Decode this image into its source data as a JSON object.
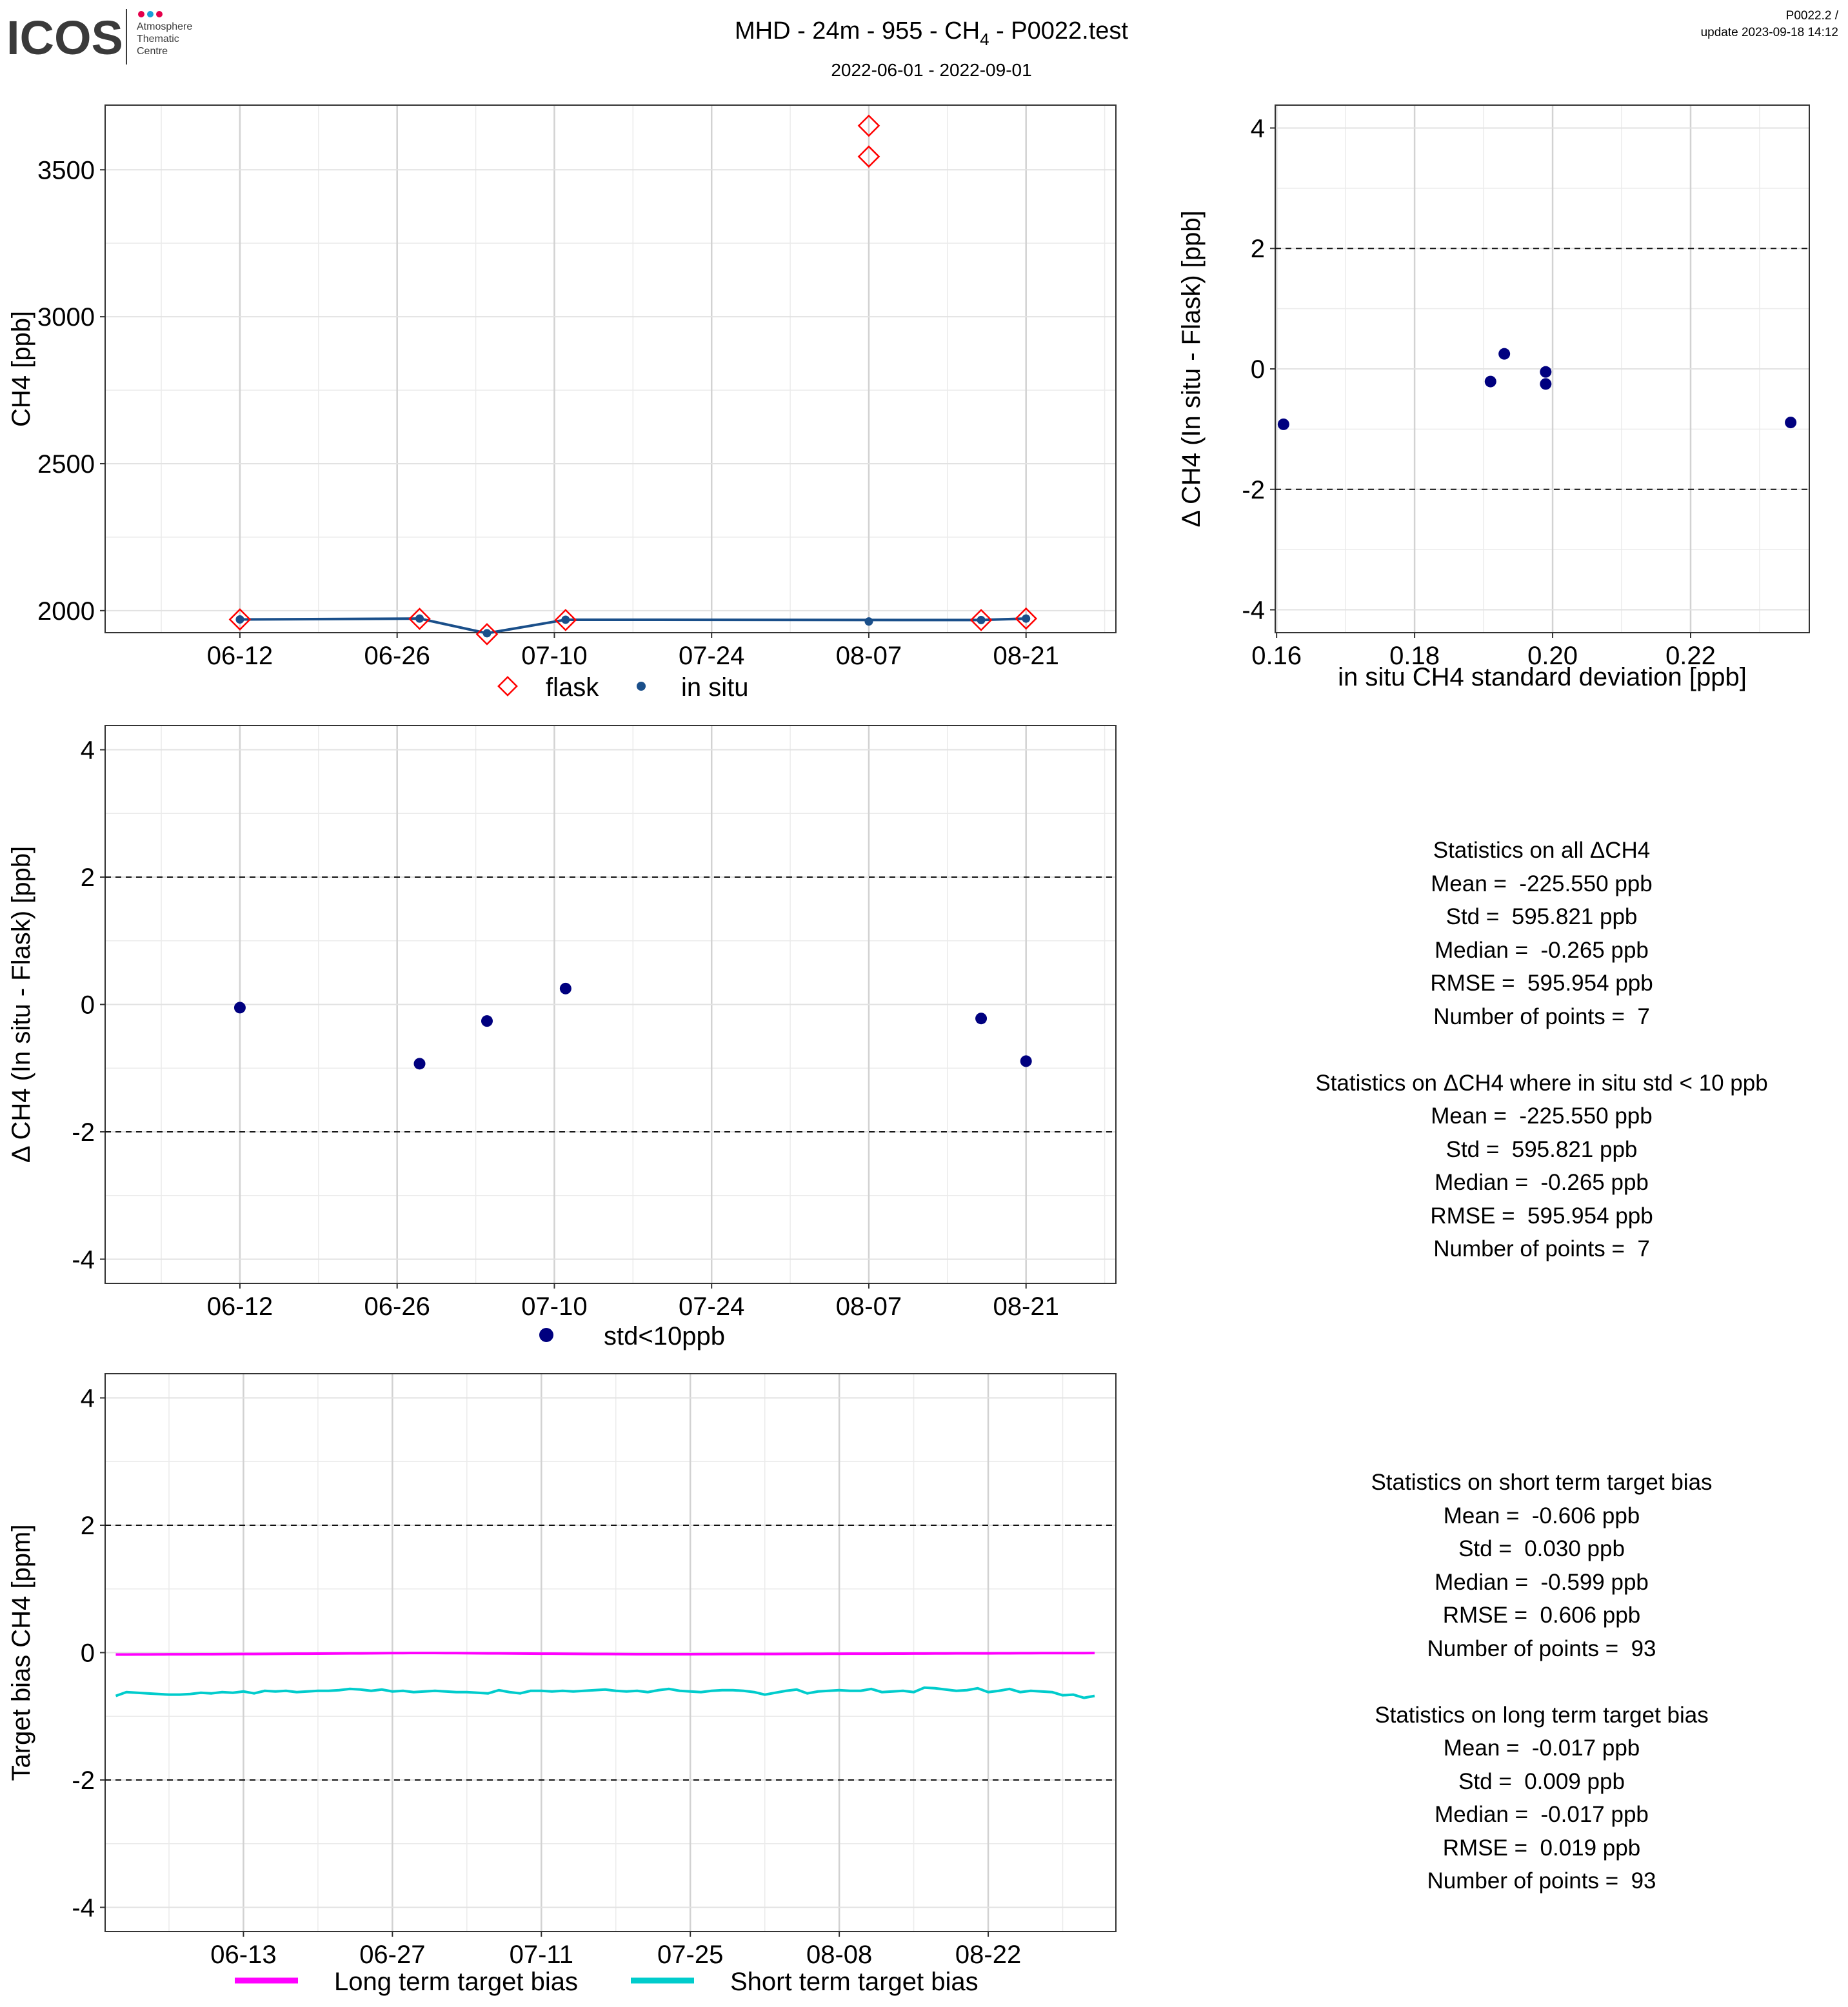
{
  "header": {
    "logo_text": "ICOS",
    "logo_sub": [
      "Atmosphere",
      "Thematic",
      "Centre"
    ],
    "title_prefix": "MHD - 24m - 955 - CH",
    "title_sub": "4",
    "title_suffix": " - P0022.test",
    "subtitle": "2022-06-01 - 2022-09-01",
    "version": "P0022.2 /",
    "update": "update  2023-09-18 14:12"
  },
  "colors": {
    "flask": "#ff0000",
    "insitu": "#1a4f8a",
    "std_points": "#00007f",
    "long_term": "#ff00ff",
    "short_term": "#00cccc"
  },
  "chart_data": [
    {
      "id": "ch4-timeseries",
      "type": "line",
      "ylabel": "CH4 [ppb]",
      "xlabel": "",
      "x_ticks": [
        "06-12",
        "06-26",
        "07-10",
        "07-24",
        "08-07",
        "08-21"
      ],
      "xlim": [
        "2022-05-31",
        "2022-08-29"
      ],
      "ylim": [
        1925,
        3720
      ],
      "y_ticks": [
        2000,
        2500,
        3000,
        3500
      ],
      "grid": true,
      "legend": "bottom",
      "series": [
        {
          "name": "flask",
          "marker": "diamond-open",
          "points": [
            {
              "x": "2022-06-12",
              "y": 1970
            },
            {
              "x": "2022-06-28",
              "y": 1972
            },
            {
              "x": "2022-07-04",
              "y": 1920
            },
            {
              "x": "2022-07-11",
              "y": 1968
            },
            {
              "x": "2022-08-07",
              "y": 3650
            },
            {
              "x": "2022-08-07",
              "y": 3545
            },
            {
              "x": "2022-08-17",
              "y": 1968
            },
            {
              "x": "2022-08-21",
              "y": 1973
            }
          ]
        },
        {
          "name": "in situ",
          "marker": "dot-line",
          "points": [
            {
              "x": "2022-06-12",
              "y": 1970
            },
            {
              "x": "2022-06-28",
              "y": 1973
            },
            {
              "x": "2022-07-04",
              "y": 1923
            },
            {
              "x": "2022-07-11",
              "y": 1969
            },
            {
              "x": "2022-08-07",
              "y": 1963
            },
            {
              "x": "2022-08-17",
              "y": 1968
            },
            {
              "x": "2022-08-21",
              "y": 1973
            }
          ]
        }
      ]
    },
    {
      "id": "delta-vs-std",
      "type": "scatter",
      "xlabel": "in situ CH4 standard deviation [ppb]",
      "ylabel": "Δ CH4 (In situ - Flask) [ppb]",
      "x_ticks": [
        "0.16",
        "0.18",
        "0.20",
        "0.22"
      ],
      "y_ticks": [
        "-4",
        "-2",
        "0",
        "2",
        "4"
      ],
      "xlim": [
        0.1598,
        0.2372
      ],
      "ylim": [
        -4.38,
        4.38
      ],
      "hlines": [
        -2,
        2
      ],
      "grid": true,
      "points": [
        {
          "x": 0.161,
          "y": -0.92
        },
        {
          "x": 0.191,
          "y": -0.21
        },
        {
          "x": 0.193,
          "y": 0.25
        },
        {
          "x": 0.199,
          "y": -0.05
        },
        {
          "x": 0.199,
          "y": -0.25
        },
        {
          "x": 0.2345,
          "y": -0.89
        }
      ]
    },
    {
      "id": "delta-timeseries",
      "type": "scatter",
      "xlabel": "",
      "ylabel": "Δ CH4 (In situ - Flask) [ppb]",
      "x_ticks": [
        "06-12",
        "06-26",
        "07-10",
        "07-24",
        "08-07",
        "08-21"
      ],
      "y_ticks": [
        "-4",
        "-2",
        "0",
        "2",
        "4"
      ],
      "xlim": [
        "2022-05-31",
        "2022-08-29"
      ],
      "ylim": [
        -4.38,
        4.38
      ],
      "hlines": [
        -2,
        2
      ],
      "grid": true,
      "legend": "bottom",
      "series": [
        {
          "name": "std<10ppb",
          "points": [
            {
              "x": "2022-06-12",
              "y": -0.05
            },
            {
              "x": "2022-06-28",
              "y": -0.93
            },
            {
              "x": "2022-07-04",
              "y": -0.26
            },
            {
              "x": "2022-07-11",
              "y": 0.25
            },
            {
              "x": "2022-08-17",
              "y": -0.22
            },
            {
              "x": "2022-08-21",
              "y": -0.89
            }
          ]
        }
      ]
    },
    {
      "id": "target-bias",
      "type": "line",
      "xlabel": "",
      "ylabel": "Target bias CH4 [ppm]",
      "x_ticks": [
        "06-13",
        "06-27",
        "07-11",
        "07-25",
        "08-08",
        "08-22"
      ],
      "y_ticks": [
        "-4",
        "-2",
        "0",
        "2",
        "4"
      ],
      "xlim": [
        "2022-05-31",
        "2022-09-03"
      ],
      "ylim": [
        -4.38,
        4.38
      ],
      "hlines": [
        -2,
        2
      ],
      "grid": true,
      "legend": "bottom",
      "start_date": "2022-06-01",
      "step_days": 1,
      "series": [
        {
          "name": "Long term target bias",
          "values": [
            -0.03,
            -0.03,
            -0.029,
            -0.029,
            -0.028,
            -0.027,
            -0.027,
            -0.026,
            -0.025,
            -0.025,
            -0.024,
            -0.023,
            -0.022,
            -0.021,
            -0.02,
            -0.019,
            -0.018,
            -0.017,
            -0.016,
            -0.015,
            -0.014,
            -0.013,
            -0.012,
            -0.011,
            -0.01,
            -0.009,
            -0.008,
            -0.007,
            -0.006,
            -0.006,
            -0.006,
            -0.007,
            -0.008,
            -0.009,
            -0.01,
            -0.011,
            -0.012,
            -0.013,
            -0.014,
            -0.015,
            -0.016,
            -0.017,
            -0.018,
            -0.019,
            -0.02,
            -0.021,
            -0.022,
            -0.023,
            -0.024,
            -0.025,
            -0.025,
            -0.025,
            -0.025,
            -0.025,
            -0.025,
            -0.024,
            -0.024,
            -0.023,
            -0.023,
            -0.022,
            -0.022,
            -0.021,
            -0.021,
            -0.02,
            -0.02,
            -0.019,
            -0.019,
            -0.018,
            -0.018,
            -0.017,
            -0.017,
            -0.016,
            -0.016,
            -0.015,
            -0.015,
            -0.014,
            -0.014,
            -0.013,
            -0.013,
            -0.012,
            -0.012,
            -0.011,
            -0.011,
            -0.01,
            -0.01,
            -0.009,
            -0.009,
            -0.008,
            -0.008,
            -0.008,
            -0.007,
            -0.007,
            -0.006
          ]
        },
        {
          "name": "Short term target bias",
          "values": [
            -0.68,
            -0.62,
            -0.63,
            -0.64,
            -0.65,
            -0.66,
            -0.66,
            -0.65,
            -0.63,
            -0.64,
            -0.62,
            -0.63,
            -0.61,
            -0.64,
            -0.6,
            -0.61,
            -0.6,
            -0.62,
            -0.61,
            -0.6,
            -0.6,
            -0.59,
            -0.57,
            -0.58,
            -0.6,
            -0.58,
            -0.61,
            -0.6,
            -0.62,
            -0.61,
            -0.6,
            -0.61,
            -0.62,
            -0.62,
            -0.63,
            -0.64,
            -0.59,
            -0.62,
            -0.64,
            -0.6,
            -0.6,
            -0.61,
            -0.6,
            -0.61,
            -0.6,
            -0.59,
            -0.58,
            -0.6,
            -0.61,
            -0.6,
            -0.62,
            -0.59,
            -0.57,
            -0.6,
            -0.61,
            -0.62,
            -0.6,
            -0.59,
            -0.59,
            -0.6,
            -0.62,
            -0.66,
            -0.63,
            -0.6,
            -0.58,
            -0.64,
            -0.61,
            -0.6,
            -0.59,
            -0.6,
            -0.6,
            -0.57,
            -0.62,
            -0.61,
            -0.6,
            -0.62,
            -0.55,
            -0.56,
            -0.58,
            -0.6,
            -0.59,
            -0.56,
            -0.62,
            -0.6,
            -0.57,
            -0.62,
            -0.6,
            -0.61,
            -0.62,
            -0.67,
            -0.66,
            -0.71,
            -0.68
          ]
        }
      ]
    }
  ],
  "legends": {
    "flask": "flask",
    "insitu": "in situ",
    "std": "std<10ppb",
    "long_term": "Long term target bias",
    "short_term": "Short term target bias"
  },
  "stats_delta": {
    "all": {
      "title": "Statistics on all ΔCH4",
      "mean": "Mean =  -225.550 ppb",
      "std": "Std =  595.821 ppb",
      "median": "Median =  -0.265 ppb",
      "rmse": "RMSE =  595.954 ppb",
      "n": "Number of points =  7"
    },
    "filtered": {
      "title": "Statistics on ΔCH4 where in situ std < 10 ppb",
      "mean": "Mean =  -225.550 ppb",
      "std": "Std =  595.821 ppb",
      "median": "Median =  -0.265 ppb",
      "rmse": "RMSE =  595.954 ppb",
      "n": "Number of points =  7"
    }
  },
  "stats_target": {
    "short": {
      "title": "Statistics on short term target bias",
      "mean": "Mean =  -0.606 ppb",
      "std": "Std =  0.030 ppb",
      "median": "Median =  -0.599 ppb",
      "rmse": "RMSE =  0.606 ppb",
      "n": "Number of points =  93"
    },
    "long": {
      "title": "Statistics on long term target bias",
      "mean": "Mean =  -0.017 ppb",
      "std": "Std =  0.009 ppb",
      "median": "Median =  -0.017 ppb",
      "rmse": "RMSE =  0.019 ppb",
      "n": "Number of points =  93"
    }
  }
}
